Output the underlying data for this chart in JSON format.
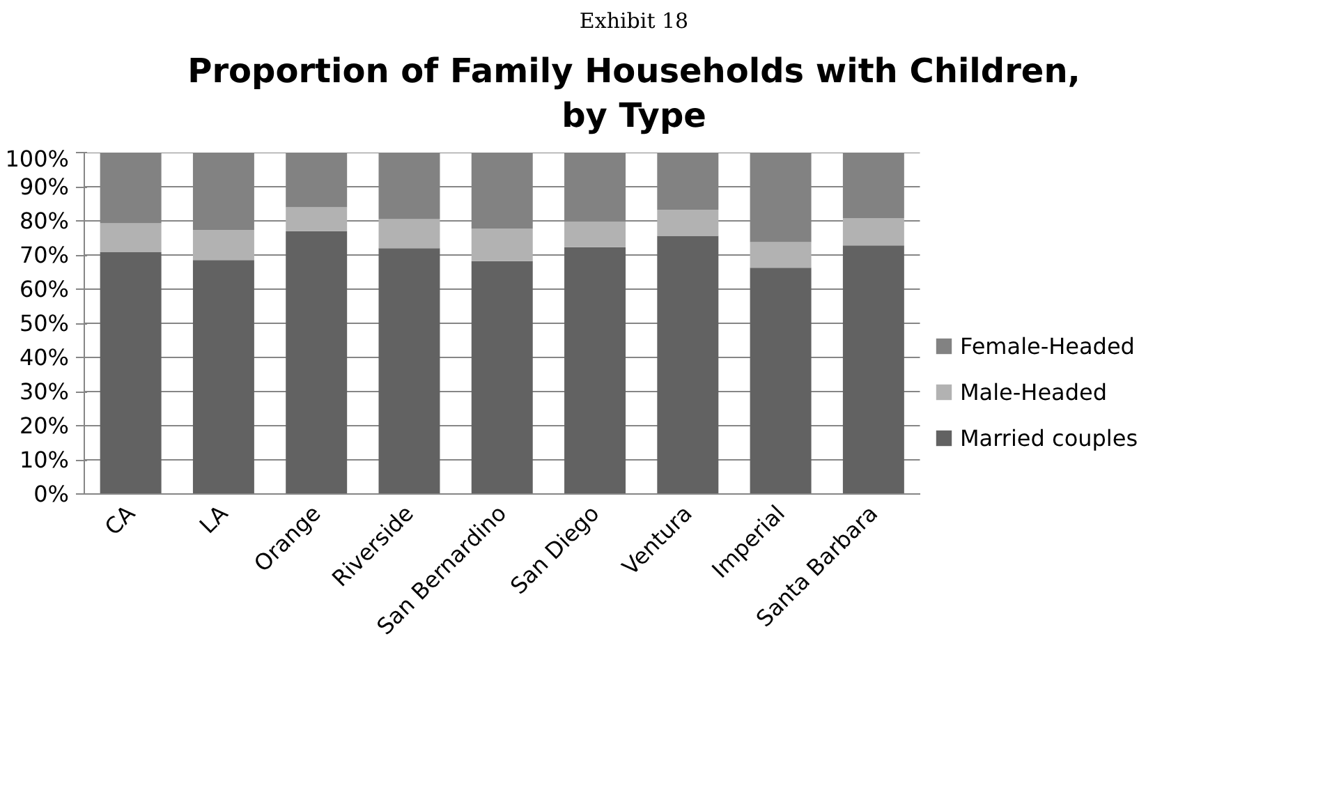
{
  "chart_data": {
    "type": "bar",
    "stacked": true,
    "title": "Proportion of Family Households with Children, by Type",
    "annotations": [
      "Exhibit 18"
    ],
    "categories": [
      "CA",
      "LA",
      "Orange",
      "Riverside",
      "San Bernardino",
      "San Diego",
      "Ventura",
      "Imperial",
      "Santa Barbara"
    ],
    "series": [
      {
        "name": "Married couples",
        "color": "#626262",
        "values": [
          70.8,
          68.5,
          77.0,
          72.0,
          68.2,
          72.3,
          75.6,
          66.3,
          72.8
        ]
      },
      {
        "name": "Male-Headed",
        "color": "#b2b2b2",
        "values": [
          8.5,
          8.8,
          7.0,
          8.5,
          9.5,
          7.5,
          7.6,
          7.5,
          8.0
        ]
      },
      {
        "name": "Female-Headed",
        "color": "#828282",
        "values": [
          20.7,
          22.7,
          16.0,
          19.5,
          22.3,
          20.2,
          16.8,
          26.2,
          19.2
        ]
      }
    ],
    "ylim": [
      0,
      100
    ],
    "yticks": [
      {
        "value": 0,
        "label": "0%"
      },
      {
        "value": 10,
        "label": "10%"
      },
      {
        "value": 20,
        "label": "20%"
      },
      {
        "value": 30,
        "label": "30%"
      },
      {
        "value": 40,
        "label": "40%"
      },
      {
        "value": 50,
        "label": "50%"
      },
      {
        "value": 60,
        "label": "60%"
      },
      {
        "value": 70,
        "label": "70%"
      },
      {
        "value": 80,
        "label": "80%"
      },
      {
        "value": 90,
        "label": "90%"
      },
      {
        "value": 100,
        "label": "100%"
      }
    ],
    "grid": "y",
    "legend": "right"
  }
}
